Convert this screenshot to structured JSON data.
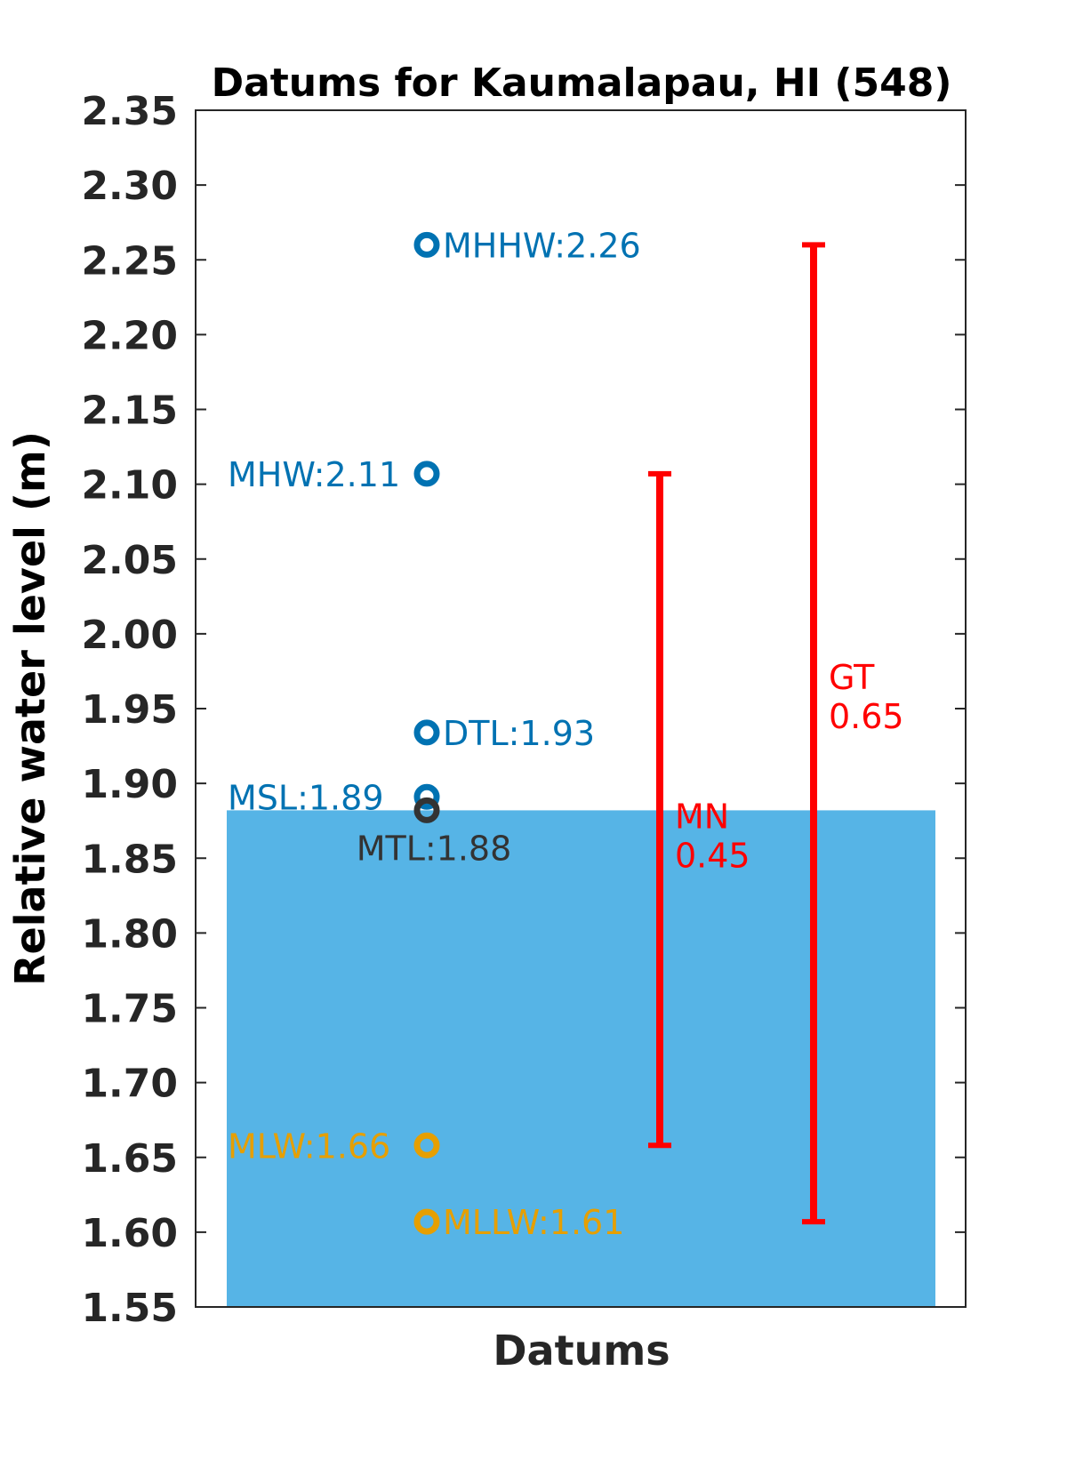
{
  "chart_data": {
    "type": "scatter",
    "title": "Datums for Kaumalapau, HI (548)",
    "xlabel": "Datums",
    "ylabel": "Relative water level (m)",
    "ylim": [
      1.55,
      2.35
    ],
    "yticks": [
      "1.55",
      "1.60",
      "1.65",
      "1.70",
      "1.75",
      "1.80",
      "1.85",
      "1.90",
      "1.95",
      "2.00",
      "2.05",
      "2.10",
      "2.15",
      "2.20",
      "2.25",
      "2.30",
      "2.35"
    ],
    "grid": false,
    "water_fill": {
      "top": 1.882,
      "color": "#56b4e6"
    },
    "datums": [
      {
        "name": "MHHW",
        "label": "MHHW:2.26",
        "value": 2.26,
        "color": "#0072b2",
        "label_side": "right"
      },
      {
        "name": "MHW",
        "label": "MHW:2.11",
        "value": 2.107,
        "color": "#0072b2",
        "label_side": "left"
      },
      {
        "name": "DTL",
        "label": "DTL:1.93",
        "value": 1.934,
        "color": "#0072b2",
        "label_side": "right"
      },
      {
        "name": "MSL",
        "label": "MSL:1.89",
        "value": 1.891,
        "color": "#0072b2",
        "label_side": "left"
      },
      {
        "name": "MTL",
        "label": "MTL:1.88",
        "value": 1.882,
        "color": "#333333",
        "label_side": "below"
      },
      {
        "name": "MLW",
        "label": "MLW:1.66",
        "value": 1.658,
        "color": "#e69f00",
        "label_side": "left"
      },
      {
        "name": "MLLW",
        "label": "MLLW:1.61",
        "value": 1.607,
        "color": "#e69f00",
        "label_side": "right"
      }
    ],
    "ranges": [
      {
        "name": "MN",
        "value_label": "0.45",
        "low": 1.658,
        "high": 2.107,
        "color": "#ff0000"
      },
      {
        "name": "GT",
        "value_label": "0.65",
        "low": 1.607,
        "high": 2.26,
        "color": "#ff0000"
      }
    ]
  }
}
